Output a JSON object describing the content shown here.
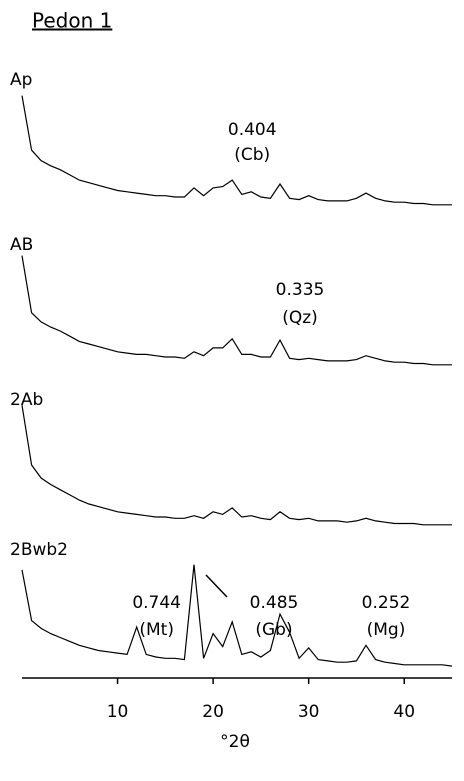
{
  "chart_data": {
    "type": "line",
    "title": "Pedon 1",
    "xlabel": "°2θ",
    "xlim": [
      0,
      45
    ],
    "ylim": [
      0,
      100
    ],
    "xticks": [
      10,
      20,
      30,
      40
    ],
    "x": [
      0,
      1,
      2,
      3,
      4,
      5,
      6,
      7,
      8,
      9,
      10,
      11,
      12,
      13,
      14,
      15,
      16,
      17,
      18,
      19,
      20,
      21,
      22,
      23,
      24,
      25,
      26,
      27,
      28,
      29,
      30,
      31,
      32,
      33,
      34,
      35,
      36,
      37,
      38,
      39,
      40,
      41,
      42,
      43,
      44,
      45
    ],
    "series": [
      {
        "name": "Ap",
        "color": "#000000",
        "values": [
          88,
          46,
          38,
          34,
          31,
          27,
          23,
          21,
          19,
          17,
          15,
          14,
          13,
          12,
          11,
          11,
          10,
          10,
          17,
          11,
          17,
          18,
          23,
          12,
          14,
          10,
          9,
          20,
          9,
          8,
          11,
          8,
          7,
          7,
          7,
          9,
          13,
          9,
          7,
          6,
          6,
          5,
          5,
          4,
          4,
          4
        ],
        "annotations": [
          {
            "x": 22,
            "label": "0.404",
            "mineral": "(Cb)"
          }
        ]
      },
      {
        "name": "AB",
        "color": "#000000",
        "values": [
          88,
          44,
          37,
          33,
          30,
          26,
          22,
          20,
          18,
          16,
          14,
          13,
          12,
          12,
          11,
          10,
          10,
          9,
          14,
          11,
          17,
          17,
          24,
          12,
          12,
          10,
          10,
          23,
          9,
          8,
          9,
          8,
          7,
          7,
          7,
          8,
          11,
          9,
          7,
          6,
          6,
          5,
          5,
          4,
          4,
          4
        ],
        "annotations": [
          {
            "x": 27,
            "label": "0.335",
            "mineral": "(Qz)"
          }
        ]
      },
      {
        "name": "2Ab",
        "color": "#000000",
        "values": [
          96,
          50,
          40,
          35,
          31,
          27,
          23,
          20,
          18,
          16,
          14,
          13,
          12,
          11,
          10,
          10,
          9,
          9,
          11,
          9,
          14,
          12,
          17,
          10,
          11,
          9,
          8,
          14,
          9,
          8,
          9,
          7,
          7,
          7,
          6,
          7,
          9,
          7,
          6,
          5,
          5,
          5,
          4,
          4,
          4,
          4
        ]
      },
      {
        "name": "2Bwb2",
        "color": "#000000",
        "values": [
          77,
          38,
          32,
          28,
          25,
          22,
          19,
          17,
          15,
          14,
          13,
          12,
          33,
          12,
          10,
          9,
          9,
          8,
          81,
          9,
          28,
          18,
          37,
          12,
          14,
          10,
          15,
          43,
          29,
          9,
          17,
          8,
          7,
          6,
          6,
          7,
          19,
          8,
          6,
          5,
          4,
          4,
          4,
          4,
          4,
          3
        ],
        "annotations": [
          {
            "x": 12,
            "label": "0.744",
            "mineral": "(Mt)"
          },
          {
            "x": 18,
            "label": "0.485",
            "mineral": "(Gb)"
          },
          {
            "x": 36,
            "label": "0.252",
            "mineral": "(Mg)"
          }
        ]
      }
    ]
  }
}
